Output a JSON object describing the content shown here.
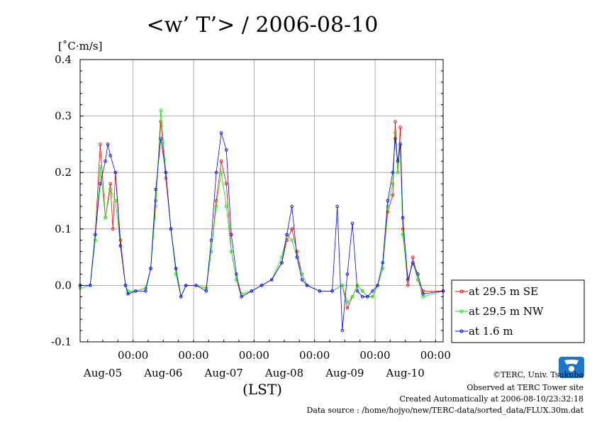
{
  "chart_data": {
    "type": "line",
    "title": "<w’ T’> / 2006-08-10",
    "ylabel": "[˚C·m/s]",
    "xlabel": "(LST)",
    "ylim": [
      -0.1,
      0.4
    ],
    "xlim": [
      0,
      144
    ],
    "yticks": [
      -0.1,
      0.0,
      0.1,
      0.2,
      0.3,
      0.4
    ],
    "ytick_labels": [
      "-0.1",
      "0.0",
      "0.1",
      "0.2",
      "0.3",
      "0.4"
    ],
    "xticks": [
      {
        "x": 21,
        "time": "00:00",
        "date": "Aug-05"
      },
      {
        "x": 45,
        "time": "00:00",
        "date": "Aug-06"
      },
      {
        "x": 69,
        "time": "00:00",
        "date": "Aug-07"
      },
      {
        "x": 93,
        "time": "00:00",
        "date": "Aug-08"
      },
      {
        "x": 117,
        "time": "00:00",
        "date": "Aug-09"
      },
      {
        "x": 141,
        "time": "00:00",
        "date": "Aug-10"
      }
    ],
    "grid": true,
    "legend_position": "right",
    "series": [
      {
        "name": "at 29.5 m SE",
        "color": "#ff0000",
        "points": [
          [
            0,
            0
          ],
          [
            4,
            0.0
          ],
          [
            6,
            0.09
          ],
          [
            8,
            0.25
          ],
          [
            10,
            0.12
          ],
          [
            12,
            0.18
          ],
          [
            13,
            0.1
          ],
          [
            14,
            0.2
          ],
          [
            16,
            0.08
          ],
          [
            18,
            0.0
          ],
          [
            19,
            -0.015
          ],
          [
            22,
            -0.01
          ],
          [
            26,
            -0.005
          ],
          [
            28,
            0.03
          ],
          [
            30,
            0.15
          ],
          [
            32,
            0.29
          ],
          [
            34,
            0.19
          ],
          [
            36,
            0.1
          ],
          [
            38,
            0.03
          ],
          [
            40,
            -0.02
          ],
          [
            42,
            0.0
          ],
          [
            46,
            0.0
          ],
          [
            50,
            -0.005
          ],
          [
            52,
            0.06
          ],
          [
            54,
            0.15
          ],
          [
            56,
            0.22
          ],
          [
            58,
            0.18
          ],
          [
            60,
            0.06
          ],
          [
            62,
            0.01
          ],
          [
            64,
            -0.02
          ],
          [
            68,
            -0.01
          ],
          [
            72,
            0.0
          ],
          [
            76,
            0.01
          ],
          [
            80,
            0.04
          ],
          [
            82,
            0.08
          ],
          [
            84,
            0.1
          ],
          [
            86,
            0.06
          ],
          [
            88,
            0.02
          ],
          [
            90,
            0.0
          ],
          [
            95,
            -0.01
          ],
          [
            100,
            -0.01
          ],
          [
            104,
            0.0
          ],
          [
            106,
            -0.04
          ],
          [
            108,
            -0.02
          ],
          [
            110,
            0.0
          ],
          [
            112,
            -0.01
          ],
          [
            114,
            -0.02
          ],
          [
            116,
            -0.02
          ],
          [
            118,
            0.0
          ],
          [
            120,
            0.03
          ],
          [
            122,
            0.13
          ],
          [
            124,
            0.16
          ],
          [
            125,
            0.29
          ],
          [
            126,
            0.2
          ],
          [
            127,
            0.28
          ],
          [
            128,
            0.1
          ],
          [
            130,
            0.0
          ],
          [
            132,
            0.05
          ],
          [
            134,
            0.01
          ],
          [
            136,
            -0.01
          ],
          [
            144,
            -0.01
          ]
        ]
      },
      {
        "name": "at 29.5 m NW",
        "color": "#00ee00",
        "points": [
          [
            0,
            -0.005
          ],
          [
            4,
            0.0
          ],
          [
            6,
            0.08
          ],
          [
            8,
            0.21
          ],
          [
            10,
            0.12
          ],
          [
            12,
            0.17
          ],
          [
            14,
            0.15
          ],
          [
            16,
            0.07
          ],
          [
            18,
            0.0
          ],
          [
            19,
            -0.01
          ],
          [
            22,
            -0.01
          ],
          [
            26,
            -0.005
          ],
          [
            28,
            0.03
          ],
          [
            30,
            0.14
          ],
          [
            32,
            0.31
          ],
          [
            34,
            0.2
          ],
          [
            36,
            0.1
          ],
          [
            38,
            0.02
          ],
          [
            40,
            -0.02
          ],
          [
            42,
            0.0
          ],
          [
            46,
            0.0
          ],
          [
            50,
            -0.005
          ],
          [
            52,
            0.06
          ],
          [
            54,
            0.14
          ],
          [
            56,
            0.2
          ],
          [
            58,
            0.14
          ],
          [
            60,
            0.06
          ],
          [
            62,
            0.01
          ],
          [
            64,
            -0.015
          ],
          [
            68,
            -0.01
          ],
          [
            72,
            0.0
          ],
          [
            76,
            0.01
          ],
          [
            80,
            0.05
          ],
          [
            82,
            0.09
          ],
          [
            84,
            0.08
          ],
          [
            86,
            0.05
          ],
          [
            88,
            0.02
          ],
          [
            90,
            0.0
          ],
          [
            95,
            -0.01
          ],
          [
            100,
            -0.01
          ],
          [
            104,
            0.0
          ],
          [
            106,
            -0.03
          ],
          [
            108,
            -0.02
          ],
          [
            110,
            0.0
          ],
          [
            112,
            -0.01
          ],
          [
            114,
            -0.02
          ],
          [
            116,
            -0.02
          ],
          [
            118,
            0.0
          ],
          [
            120,
            0.03
          ],
          [
            122,
            0.14
          ],
          [
            124,
            0.18
          ],
          [
            125,
            0.27
          ],
          [
            126,
            0.2
          ],
          [
            127,
            0.25
          ],
          [
            128,
            0.09
          ],
          [
            130,
            0.01
          ],
          [
            132,
            0.04
          ],
          [
            134,
            0.01
          ],
          [
            136,
            -0.02
          ],
          [
            144,
            -0.01
          ]
        ]
      },
      {
        "name": "at 1.6 m",
        "color": "#0000ff",
        "points": [
          [
            0,
            0
          ],
          [
            4,
            0.0
          ],
          [
            6,
            0.09
          ],
          [
            8,
            0.18
          ],
          [
            10,
            0.22
          ],
          [
            11,
            0.25
          ],
          [
            12,
            0.23
          ],
          [
            14,
            0.2
          ],
          [
            16,
            0.07
          ],
          [
            18,
            0.0
          ],
          [
            19,
            -0.015
          ],
          [
            22,
            -0.01
          ],
          [
            26,
            -0.01
          ],
          [
            28,
            0.03
          ],
          [
            30,
            0.17
          ],
          [
            32,
            0.26
          ],
          [
            34,
            0.2
          ],
          [
            36,
            0.1
          ],
          [
            38,
            0.03
          ],
          [
            40,
            -0.02
          ],
          [
            42,
            0.0
          ],
          [
            46,
            0.0
          ],
          [
            50,
            -0.01
          ],
          [
            52,
            0.08
          ],
          [
            54,
            0.2
          ],
          [
            56,
            0.27
          ],
          [
            58,
            0.24
          ],
          [
            60,
            0.09
          ],
          [
            62,
            0.02
          ],
          [
            64,
            -0.02
          ],
          [
            68,
            -0.01
          ],
          [
            72,
            0.0
          ],
          [
            76,
            0.01
          ],
          [
            80,
            0.04
          ],
          [
            82,
            0.09
          ],
          [
            84,
            0.14
          ],
          [
            86,
            0.05
          ],
          [
            88,
            0.01
          ],
          [
            90,
            0.0
          ],
          [
            95,
            -0.01
          ],
          [
            100,
            -0.01
          ],
          [
            102,
            0.14
          ],
          [
            104,
            -0.08
          ],
          [
            106,
            0.02
          ],
          [
            108,
            0.11
          ],
          [
            110,
            -0.01
          ],
          [
            112,
            -0.02
          ],
          [
            114,
            -0.02
          ],
          [
            116,
            -0.01
          ],
          [
            118,
            0.0
          ],
          [
            120,
            0.04
          ],
          [
            122,
            0.15
          ],
          [
            124,
            0.2
          ],
          [
            125,
            0.26
          ],
          [
            126,
            0.22
          ],
          [
            127,
            0.25
          ],
          [
            128,
            0.12
          ],
          [
            130,
            0.01
          ],
          [
            132,
            0.04
          ],
          [
            134,
            0.02
          ],
          [
            136,
            -0.015
          ],
          [
            144,
            -0.01
          ]
        ]
      }
    ]
  },
  "credits": {
    "line1": "©TERC, Univ. Tsukuba",
    "line2": "Observed at TERC Tower site",
    "line3": "Created Automatically at 2006-08-10/23:32:18",
    "line4": "Data source : /home/hojyo/new/TERC-data/sorted_data/FLUX.30m.dat",
    "logo_text": "TERC"
  }
}
